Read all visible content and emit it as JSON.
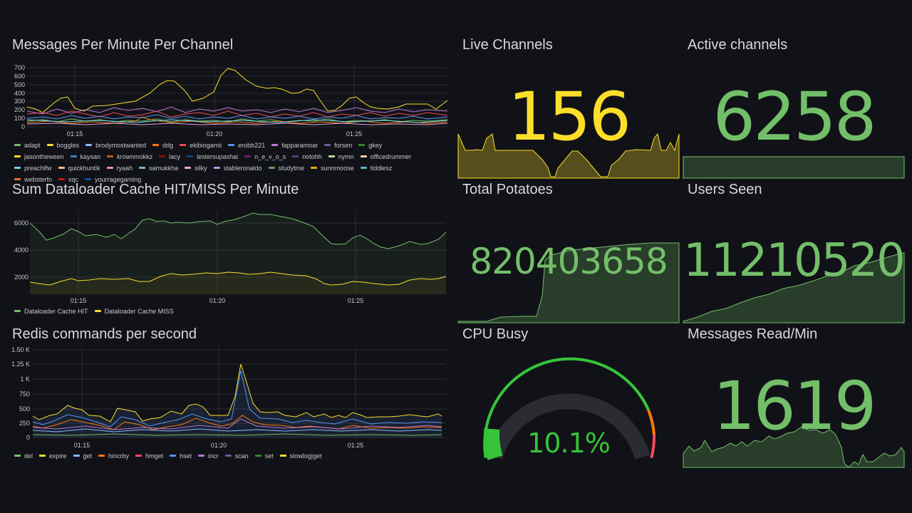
{
  "panels": {
    "messages": {
      "title": "Messages Per Minute Per Channel",
      "y_ticks": [
        "700",
        "600",
        "500",
        "400",
        "300",
        "200",
        "100",
        "0"
      ],
      "x_ticks": [
        "01:15",
        "01:20",
        "01:25"
      ],
      "legend": [
        {
          "label": "adapt",
          "color": "#73bf69"
        },
        {
          "label": "boggles",
          "color": "#fade2a"
        },
        {
          "label": "brodymostwanted",
          "color": "#8ab8ff"
        },
        {
          "label": "ddg",
          "color": "#ff780a"
        },
        {
          "label": "ekibiogamii",
          "color": "#f2495c"
        },
        {
          "label": "erobb221",
          "color": "#5794f2"
        },
        {
          "label": "fapparamoar",
          "color": "#b877d9"
        },
        {
          "label": "forsen",
          "color": "#705da0"
        },
        {
          "label": "gkey",
          "color": "#37872d"
        },
        {
          "label": "jasontheween",
          "color": "#fade2a"
        },
        {
          "label": "kaysan",
          "color": "#447ebc"
        },
        {
          "label": "krownmokkz",
          "color": "#c15c17"
        },
        {
          "label": "lacy",
          "color": "#890f02"
        },
        {
          "label": "lestersupashai",
          "color": "#0a437c"
        },
        {
          "label": "n_e_v_o_s",
          "color": "#6d1f62"
        },
        {
          "label": "notohh",
          "color": "#584477"
        },
        {
          "label": "nymn",
          "color": "#b7dbab"
        },
        {
          "label": "officedrummer",
          "color": "#f4d598"
        },
        {
          "label": "preachlfw",
          "color": "#70dbed"
        },
        {
          "label": "quickhuntik",
          "color": "#f9ba8f"
        },
        {
          "label": "ryaah",
          "color": "#f29191"
        },
        {
          "label": "samukkha",
          "color": "#82b5d8"
        },
        {
          "label": "silky",
          "color": "#e5a8e2"
        },
        {
          "label": "stableronaldo",
          "color": "#aea2e0"
        },
        {
          "label": "studytme",
          "color": "#629e51"
        },
        {
          "label": "sunnmoose",
          "color": "#e5ac0e"
        },
        {
          "label": "tiddlesz",
          "color": "#64b0c8"
        },
        {
          "label": "websterfn",
          "color": "#e0752d"
        },
        {
          "label": "xqc",
          "color": "#bf1b00"
        },
        {
          "label": "yourragegaming",
          "color": "#0a50a1"
        }
      ]
    },
    "dataloader": {
      "title": "Sum Dataloader Cache HIT/MISS Per Minute",
      "y_ticks": [
        "6000",
        "4000",
        "2000"
      ],
      "x_ticks": [
        "01:15",
        "01:20",
        "01:25"
      ],
      "legend": [
        {
          "label": "Dataloader Cache HIT",
          "color": "#73bf69"
        },
        {
          "label": "Dataloader Cache MISS",
          "color": "#fade2a"
        }
      ]
    },
    "redis": {
      "title": "Redis commands per second",
      "y_ticks": [
        "1.50 K",
        "1.25 K",
        "1 K",
        "750",
        "500",
        "250",
        "0"
      ],
      "x_ticks": [
        "01:15",
        "01:20",
        "01:25"
      ],
      "legend": [
        {
          "label": "del",
          "color": "#73bf69"
        },
        {
          "label": "expire",
          "color": "#fade2a"
        },
        {
          "label": "get",
          "color": "#8ab8ff"
        },
        {
          "label": "hincrby",
          "color": "#ff780a"
        },
        {
          "label": "hmget",
          "color": "#f2495c"
        },
        {
          "label": "hset",
          "color": "#5794f2"
        },
        {
          "label": "incr",
          "color": "#b877d9"
        },
        {
          "label": "scan",
          "color": "#705da0"
        },
        {
          "label": "set",
          "color": "#37872d"
        },
        {
          "label": "slowlog|get",
          "color": "#fade2a"
        }
      ]
    },
    "live_channels": {
      "title": "Live Channels",
      "value": "156",
      "color": "#fade2a"
    },
    "active_channels": {
      "title": "Active channels",
      "value": "6258",
      "color": "#73bf69"
    },
    "total_potatoes": {
      "title": "Total Potatoes",
      "value": "820403658",
      "color": "#73bf69"
    },
    "users_seen": {
      "title": "Users Seen",
      "value": "11210520",
      "color": "#73bf69"
    },
    "cpu_busy": {
      "title": "CPU Busy",
      "value": "10.1%",
      "percent": 10.1,
      "color": "#37c43a"
    },
    "messages_read": {
      "title": "Messages Read/Min",
      "value": "1619",
      "color": "#73bf69"
    }
  }
}
